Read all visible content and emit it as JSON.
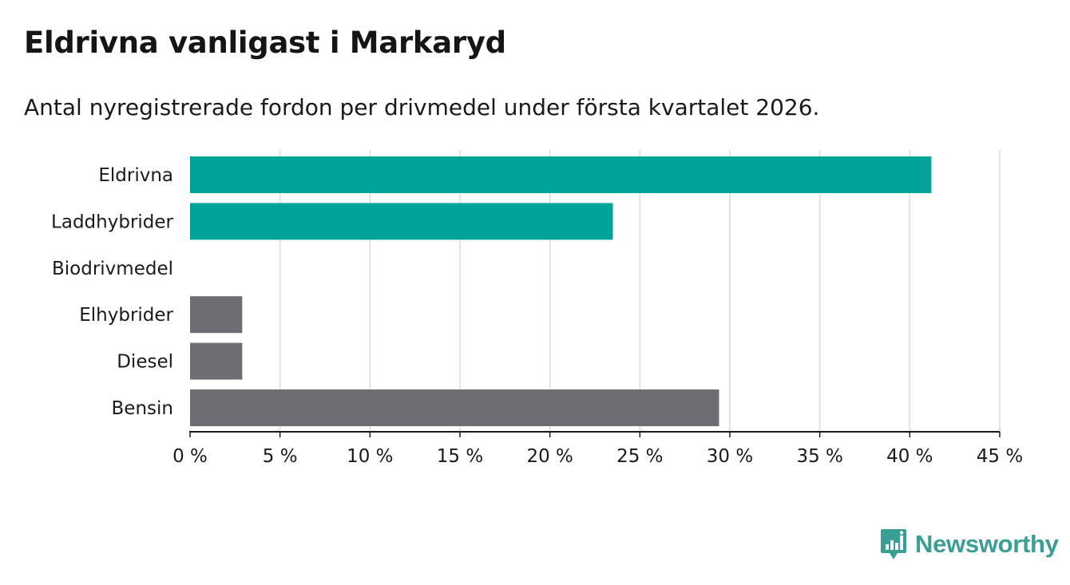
{
  "title": "Eldrivna vanligast i Markaryd",
  "subtitle": "Antal nyregistrerade fordon per drivmedel under första kvartalet 2026.",
  "colors": {
    "highlight": "#00a399",
    "other": "#6e6d73",
    "grid": "#dcdcdc",
    "axis": "#1a1a1a",
    "brand": "#3a9e96"
  },
  "chart_data": {
    "type": "bar",
    "orientation": "horizontal",
    "categories": [
      "Eldrivna",
      "Laddhybrider",
      "Biodrivmedel",
      "Elhybrider",
      "Diesel",
      "Bensin"
    ],
    "values": [
      41.2,
      23.5,
      0,
      2.9,
      2.9,
      29.4
    ],
    "highlight": [
      true,
      true,
      true,
      false,
      false,
      false
    ],
    "xlim": [
      0,
      45
    ],
    "ticks": [
      0,
      5,
      10,
      15,
      20,
      25,
      30,
      35,
      40,
      45
    ],
    "tick_suffix": " %",
    "grid": true
  },
  "logo": {
    "icon": "newsworthy-chart-icon",
    "text": "Newsworthy"
  }
}
